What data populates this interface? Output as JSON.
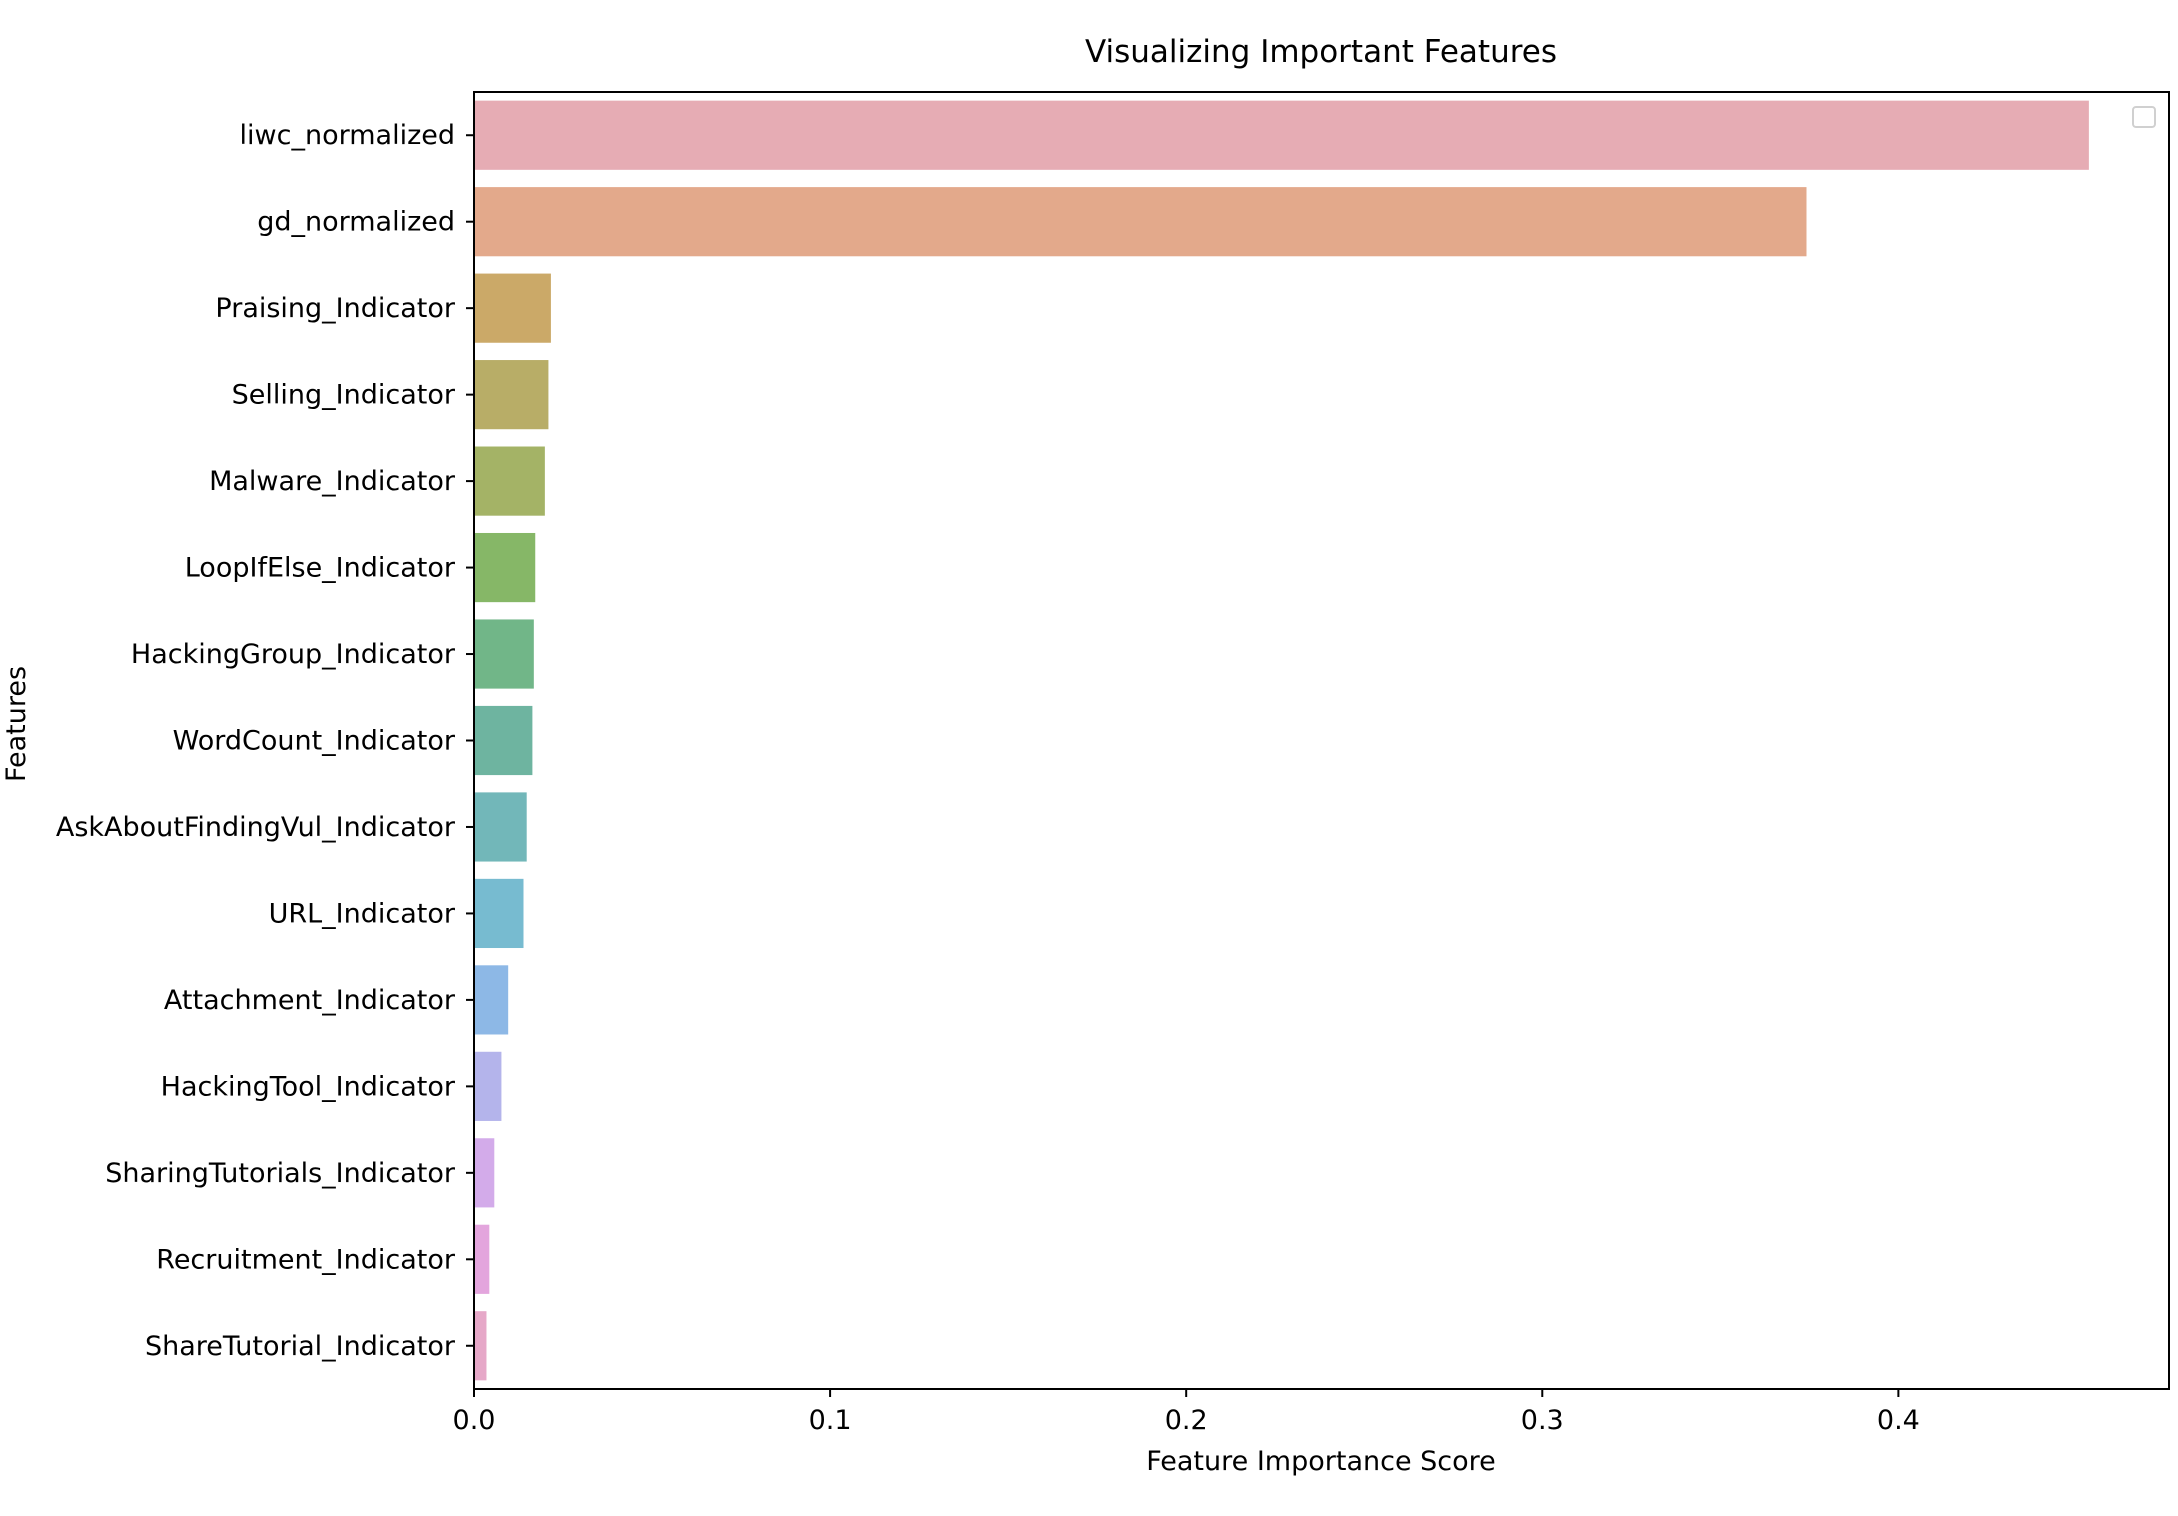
{
  "chart_data": {
    "type": "bar",
    "orientation": "horizontal",
    "title": "Visualizing Important Features",
    "xlabel": "Feature Importance Score",
    "ylabel": "Features",
    "xlim": [
      0,
      0.476
    ],
    "xticks": [
      0.0,
      0.1,
      0.2,
      0.3,
      0.4
    ],
    "xtick_labels": [
      "0.0",
      "0.1",
      "0.2",
      "0.3",
      "0.4"
    ],
    "grid": false,
    "legend": {
      "placement": "top-right",
      "entries": []
    },
    "categories": [
      "liwc_normalized",
      "gd_normalized",
      "Praising_Indicator",
      "Selling_Indicator",
      "Malware_Indicator",
      "LoopIfElse_Indicator",
      "HackingGroup_Indicator",
      "WordCount_Indicator",
      "AskAboutFindingVul_Indicator",
      "URL_Indicator",
      "Attachment_Indicator",
      "HackingTool_Indicator",
      "SharingTutorials_Indicator",
      "Recruitment_Indicator",
      "ShareTutorial_Indicator"
    ],
    "values": [
      0.4535,
      0.3742,
      0.0216,
      0.0209,
      0.0199,
      0.0172,
      0.0168,
      0.0164,
      0.0148,
      0.0139,
      0.0096,
      0.0077,
      0.0057,
      0.0043,
      0.0035
    ],
    "colors": [
      "#e6acb4",
      "#e3a98b",
      "#cba968",
      "#b8ad67",
      "#a4b366",
      "#86b767",
      "#71b688",
      "#6eb4a0",
      "#72b7b9",
      "#77bbd0",
      "#8db8e6",
      "#b4b4eb",
      "#d3abea",
      "#e3a5dd",
      "#e6a8c8"
    ]
  }
}
